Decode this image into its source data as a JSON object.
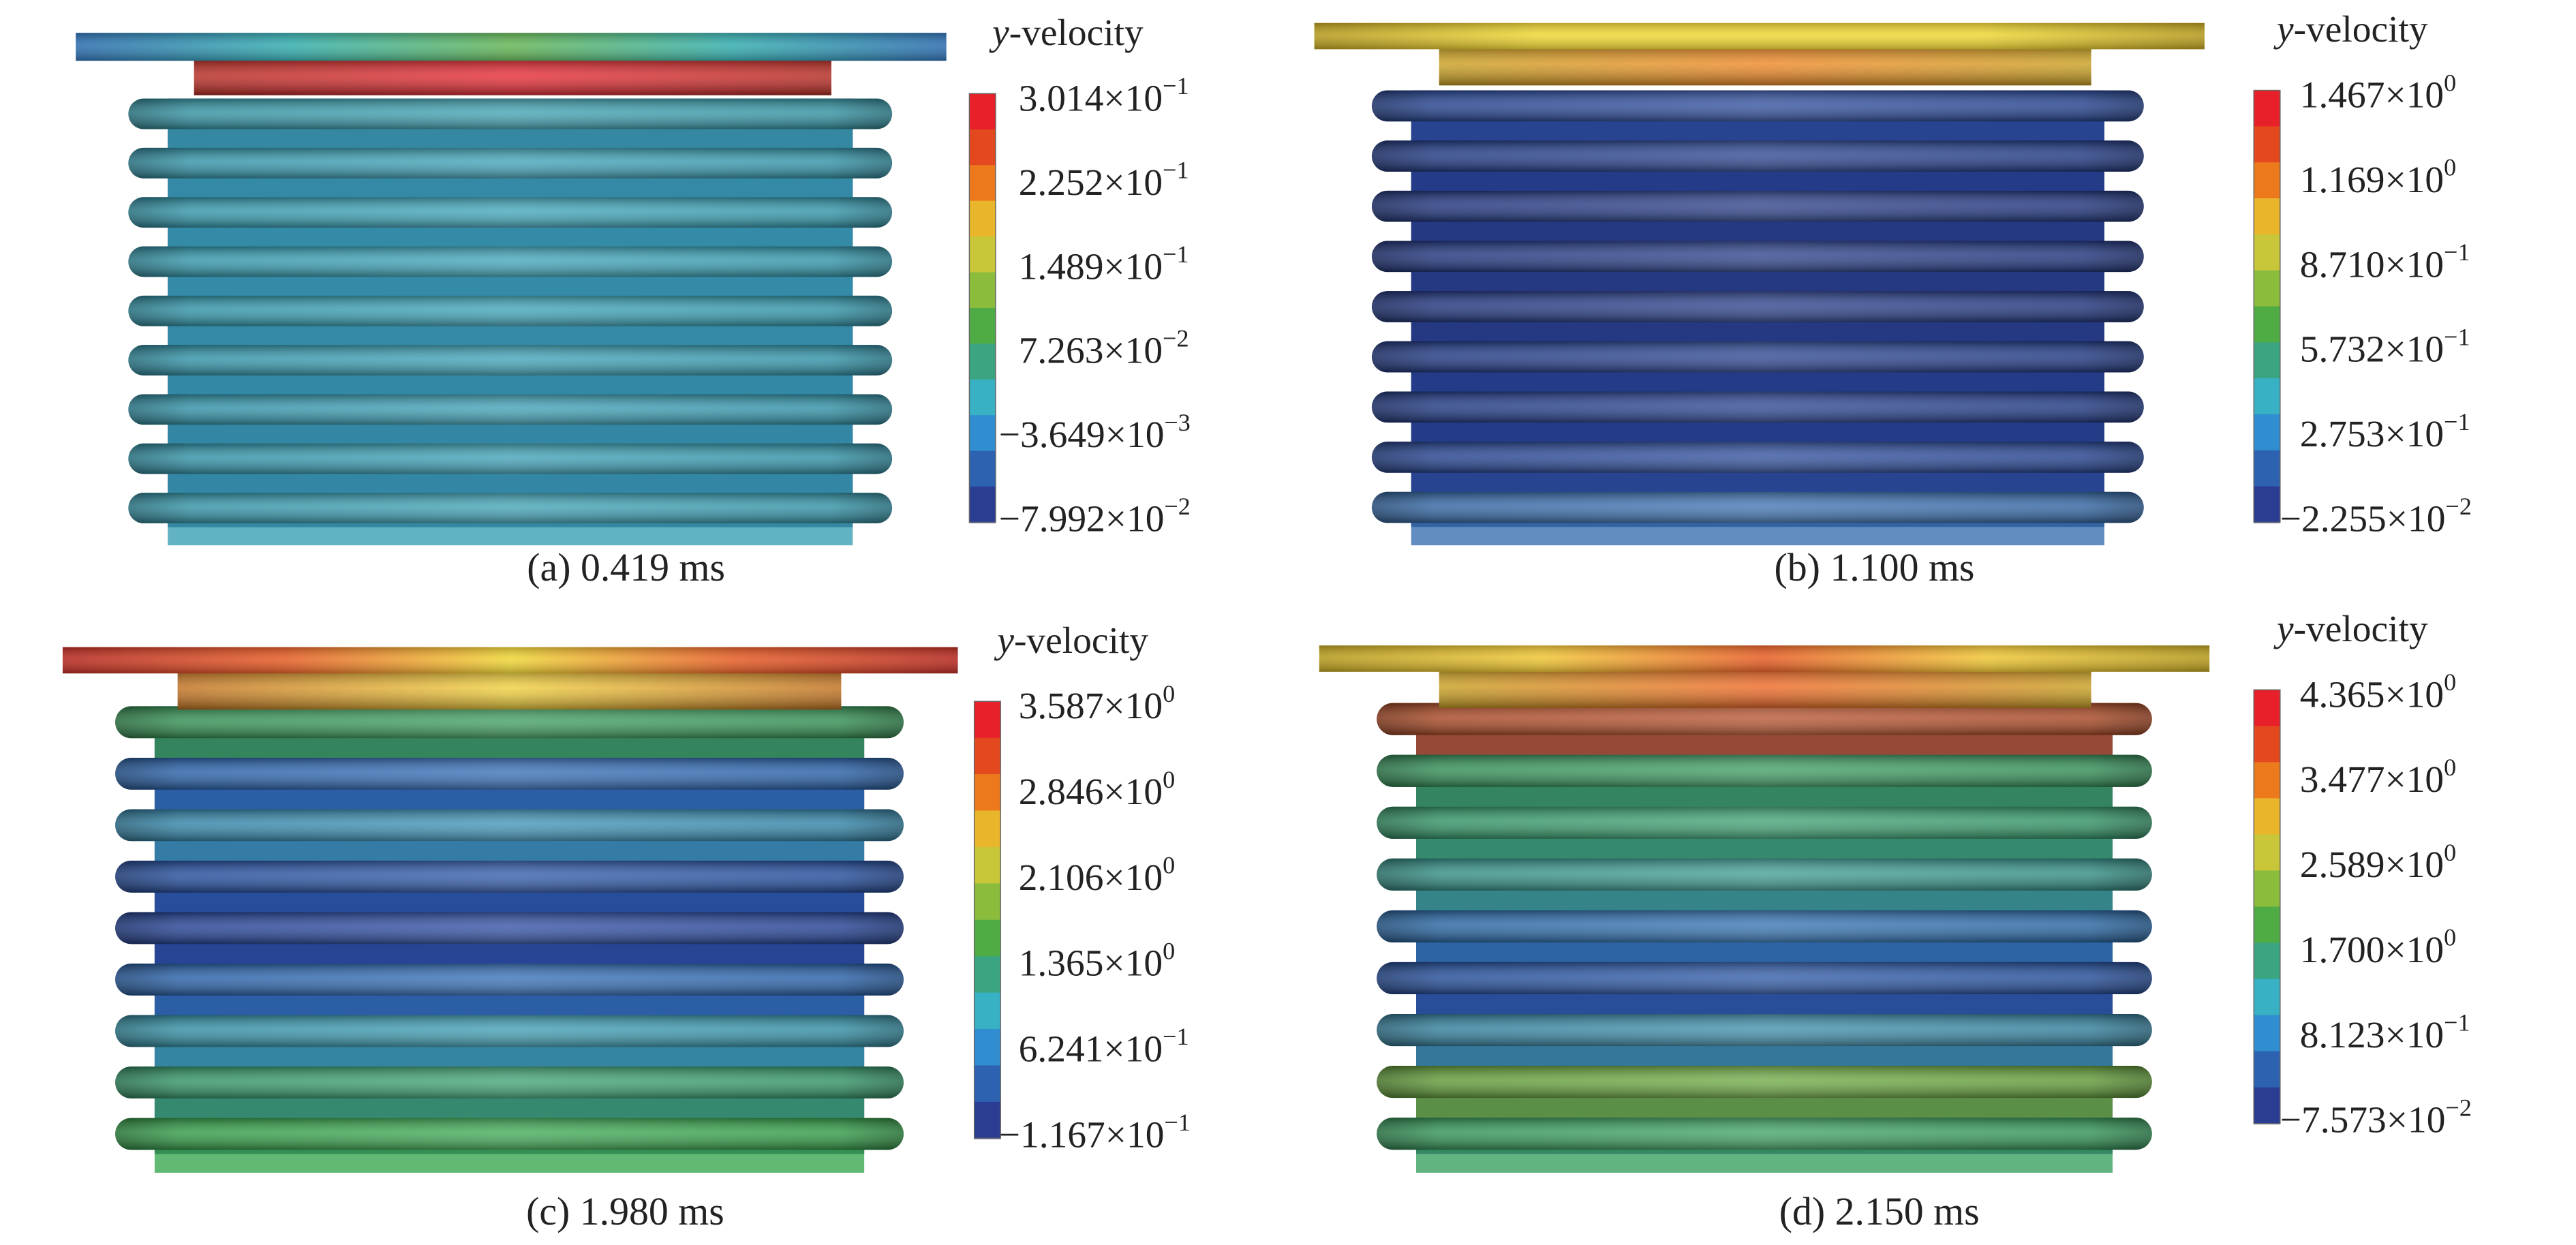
{
  "panels": [
    {
      "caption": "(a) 0.419 ms",
      "legend": {
        "title_var": "y",
        "title_rest": "-velocity",
        "ticks": [
          {
            "base": "3.014×10",
            "exp": "−1"
          },
          {
            "base": "2.252×10",
            "exp": "−1"
          },
          {
            "base": "1.489×10",
            "exp": "−1"
          },
          {
            "base": "7.263×10",
            "exp": "−2"
          },
          {
            "base": "−3.649×10",
            "exp": "−3"
          },
          {
            "base": "−7.992×10",
            "exp": "−2"
          }
        ]
      }
    },
    {
      "caption": "(b) 1.100 ms",
      "legend": {
        "title_var": "y",
        "title_rest": "-velocity",
        "ticks": [
          {
            "base": "1.467×10",
            "exp": "0"
          },
          {
            "base": "1.169×10",
            "exp": "0"
          },
          {
            "base": "8.710×10",
            "exp": "−1"
          },
          {
            "base": "5.732×10",
            "exp": "−1"
          },
          {
            "base": "2.753×10",
            "exp": "−1"
          },
          {
            "base": "−2.255×10",
            "exp": "−2"
          }
        ]
      }
    },
    {
      "caption": "(c) 1.980 ms",
      "legend": {
        "title_var": "y",
        "title_rest": "-velocity",
        "ticks": [
          {
            "base": "3.587×10",
            "exp": "0"
          },
          {
            "base": "2.846×10",
            "exp": "0"
          },
          {
            "base": "2.106×10",
            "exp": "0"
          },
          {
            "base": "1.365×10",
            "exp": "0"
          },
          {
            "base": "6.241×10",
            "exp": "−1"
          },
          {
            "base": "−1.167×10",
            "exp": "−1"
          }
        ]
      }
    },
    {
      "caption": "(d) 2.150 ms",
      "legend": {
        "title_var": "y",
        "title_rest": "-velocity",
        "ticks": [
          {
            "base": "4.365×10",
            "exp": "0"
          },
          {
            "base": "3.477×10",
            "exp": "0"
          },
          {
            "base": "2.589×10",
            "exp": "0"
          },
          {
            "base": "1.700×10",
            "exp": "0"
          },
          {
            "base": "8.123×10",
            "exp": "−1"
          },
          {
            "base": "−7.573×10",
            "exp": "−2"
          }
        ]
      }
    }
  ]
}
